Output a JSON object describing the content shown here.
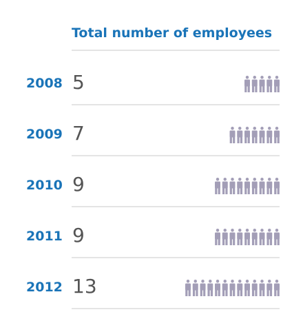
{
  "colors": {
    "accent": "#1a74b8",
    "value_text": "#555555",
    "icon": "#a39eb7",
    "rule": "#c9c9c9"
  },
  "icon_name": "person-icon",
  "chart_data": {
    "type": "table",
    "title": "Total number of employees",
    "xlabel": "",
    "ylabel": "",
    "categories": [
      "2008",
      "2009",
      "2010",
      "2011",
      "2012"
    ],
    "values": [
      5,
      7,
      9,
      9,
      13
    ],
    "value_labels": [
      "5",
      "7",
      "9",
      "9",
      "13"
    ]
  }
}
